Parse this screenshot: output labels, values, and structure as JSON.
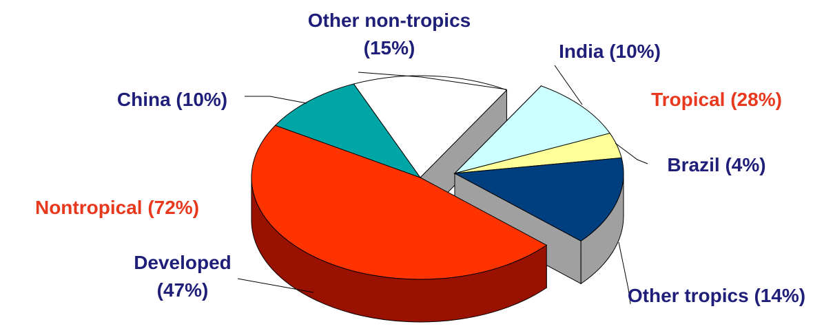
{
  "chart_data": {
    "type": "pie3d",
    "values": [
      47,
      10,
      15,
      10,
      4,
      14
    ],
    "value_labels": [
      "Developed (47%)",
      "China (10%)",
      "Other non-tropics (15%)",
      "India (10%)",
      "Brazil (4%)",
      "Other tropics (14%)"
    ],
    "colors": [
      "#ff3300",
      "#00a6a6",
      "#ffffff",
      "#ccffff",
      "#ffff99",
      "#003f7f"
    ],
    "side_colors": [
      "#991100",
      "#007777",
      "#a0a0a0",
      "#a0a0a0",
      "#a0a0a0",
      "#a0a0a0"
    ],
    "groups": [
      {
        "label": "Nontropical (72%)",
        "value": 72,
        "members": [
          0,
          1,
          2
        ],
        "color": "#e8381e"
      },
      {
        "label": "Tropical (28%)",
        "value": 28,
        "members": [
          3,
          4,
          5
        ],
        "color": "#e8381e",
        "exploded": true
      }
    ],
    "label_color": "#1f1f7a"
  }
}
